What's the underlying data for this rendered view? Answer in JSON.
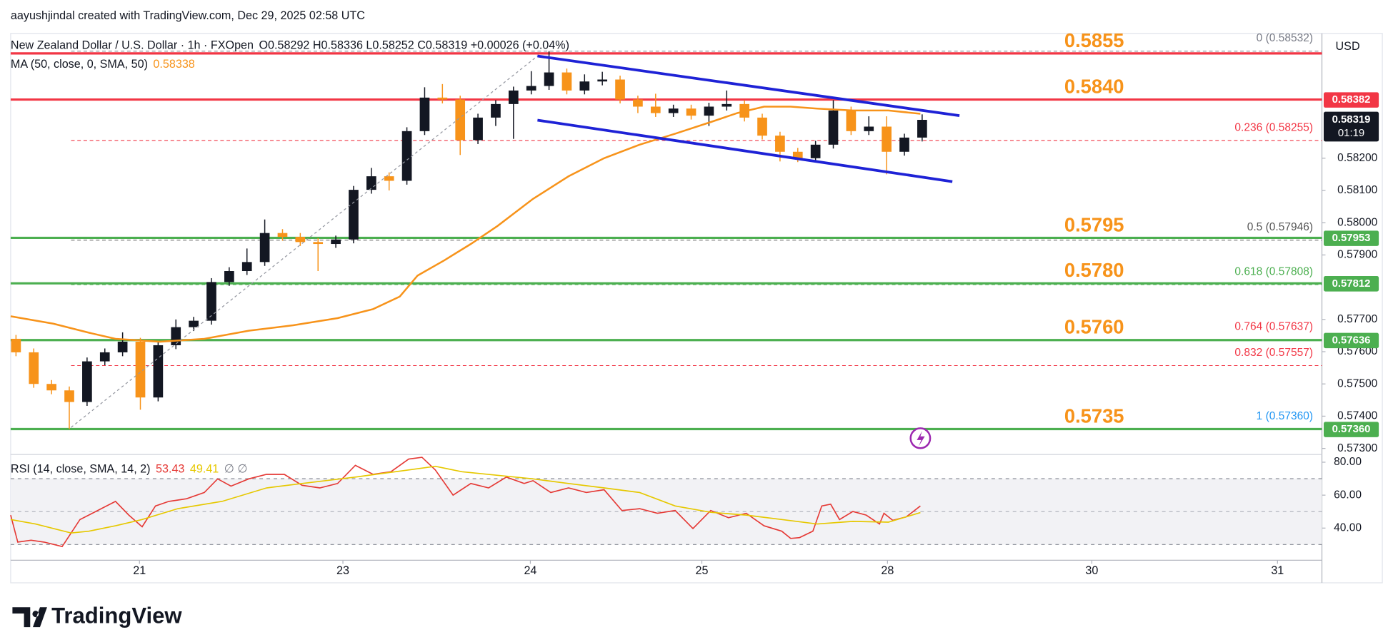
{
  "header": {
    "credit": "aayushjindal created with TradingView.com, Dec 29, 2025 02:58 UTC",
    "brand": "TradingView"
  },
  "chart_data": {
    "type": "candlestick",
    "symbol": "New Zealand Dollar / U.S. Dollar · 1h · FXOpen",
    "ohlc_text": "O0.58292 H0.58336 L0.58252 C0.58319 +0.00026 (+0.04%)",
    "currency": "USD",
    "up_color": "#131722",
    "down_color": "#f7931a",
    "x": [
      1,
      3,
      5,
      7,
      9,
      11,
      13,
      15,
      17,
      19,
      21,
      23,
      25,
      27,
      29,
      31,
      33,
      35,
      37,
      39,
      41,
      43,
      45,
      47,
      49,
      51,
      53,
      55,
      57,
      59,
      61,
      63,
      65,
      67,
      69,
      71,
      73,
      75,
      77,
      79,
      81,
      83,
      85,
      87,
      89,
      91,
      93,
      95,
      97,
      99,
      101,
      103
    ],
    "open": [
      0.5764,
      0.57598,
      0.575,
      0.5748,
      0.57444,
      0.5757,
      0.57598,
      0.57631,
      0.57458,
      0.5762,
      0.57676,
      0.57696,
      0.57816,
      0.5785,
      0.57878,
      0.57968,
      0.57956,
      0.5794,
      0.57934,
      0.57948,
      0.58102,
      0.58144,
      0.5813,
      0.58284,
      0.58388,
      0.58382,
      0.58256,
      0.58326,
      0.58368,
      0.5841,
      0.58424,
      0.58466,
      0.5841,
      0.58438,
      0.58444,
      0.58382,
      0.5836,
      0.5834,
      0.58354,
      0.58332,
      0.5836,
      0.58368,
      0.58326,
      0.5827,
      0.5822,
      0.582,
      0.58242,
      0.58348,
      0.58284,
      0.58298,
      0.5822,
      0.58264
    ],
    "high": [
      0.57652,
      0.5761,
      0.57512,
      0.57492,
      0.57582,
      0.5761,
      0.5766,
      0.57643,
      0.57632,
      0.577,
      0.57708,
      0.57828,
      0.57862,
      0.5792,
      0.5801,
      0.5798,
      0.57968,
      0.57952,
      0.5796,
      0.58114,
      0.5817,
      0.58156,
      0.58296,
      0.5842,
      0.5843,
      0.58394,
      0.58338,
      0.5838,
      0.58422,
      0.5847,
      0.58532,
      0.58478,
      0.5846,
      0.58468,
      0.58456,
      0.58394,
      0.584,
      0.58366,
      0.58366,
      0.58372,
      0.5841,
      0.5838,
      0.58338,
      0.58282,
      0.58232,
      0.58254,
      0.5838,
      0.5836,
      0.5833,
      0.5833,
      0.58276,
      0.58336
    ],
    "low": [
      0.57586,
      0.57488,
      0.57468,
      0.5736,
      0.57432,
      0.57558,
      0.57586,
      0.5742,
      0.57446,
      0.57608,
      0.57664,
      0.57684,
      0.57804,
      0.57838,
      0.57866,
      0.57944,
      0.57928,
      0.5785,
      0.57922,
      0.57936,
      0.5809,
      0.581,
      0.58118,
      0.58272,
      0.5837,
      0.5821,
      0.58244,
      0.583,
      0.5826,
      0.58398,
      0.58412,
      0.58398,
      0.58398,
      0.58426,
      0.5837,
      0.5834,
      0.58328,
      0.58328,
      0.5832,
      0.583,
      0.58348,
      0.58314,
      0.58258,
      0.5819,
      0.58188,
      0.58188,
      0.5823,
      0.58272,
      0.58272,
      0.5815,
      0.58208,
      0.58252
    ],
    "close": [
      0.57598,
      0.575,
      0.5748,
      0.57444,
      0.5757,
      0.57598,
      0.57631,
      0.57458,
      0.5762,
      0.57676,
      0.57696,
      0.57816,
      0.5785,
      0.57878,
      0.57968,
      0.57956,
      0.5794,
      0.57934,
      0.57948,
      0.58102,
      0.58144,
      0.5813,
      0.58284,
      0.58388,
      0.58382,
      0.58256,
      0.58326,
      0.58368,
      0.5841,
      0.58424,
      0.58466,
      0.5841,
      0.58438,
      0.58444,
      0.58382,
      0.5836,
      0.5834,
      0.58354,
      0.58332,
      0.5836,
      0.58368,
      0.58326,
      0.5827,
      0.5822,
      0.582,
      0.58242,
      0.58348,
      0.58284,
      0.58298,
      0.5822,
      0.58264,
      0.58319
    ],
    "last_price": 0.58319,
    "countdown": "01:19",
    "xlim": [
      0.4,
      148
    ],
    "xticks": [
      {
        "value": 14.9,
        "label": "21"
      },
      {
        "value": 37.8,
        "label": "23"
      },
      {
        "value": 58.9,
        "label": "24"
      },
      {
        "value": 78.2,
        "label": "25"
      },
      {
        "value": 99.1,
        "label": "28"
      },
      {
        "value": 122.1,
        "label": "30"
      },
      {
        "value": 143,
        "label": "31"
      }
    ],
    "ylim": [
      0.57284,
      0.58587
    ],
    "yticks": [
      {
        "value": 0.582,
        "label": "0.58200"
      },
      {
        "value": 0.581,
        "label": "0.58100"
      },
      {
        "value": 0.58,
        "label": "0.58000"
      },
      {
        "value": 0.579,
        "label": "0.57900"
      },
      {
        "value": 0.577,
        "label": "0.57700"
      },
      {
        "value": 0.576,
        "label": "0.57600"
      },
      {
        "value": 0.575,
        "label": "0.57500"
      },
      {
        "value": 0.574,
        "label": "0.57400"
      },
      {
        "value": 0.573,
        "label": "0.57300"
      }
    ],
    "ma": {
      "name": "MA (50, close, 0, SMA, 50)",
      "color": "#f7931a",
      "last": 0.58338,
      "x": [
        0.4,
        5.2,
        9.2,
        12.2,
        17.2,
        22.2,
        27.2,
        32.2,
        37.2,
        41.2,
        44.2,
        46.2,
        49.2,
        52.2,
        55.2,
        59.2,
        63.2,
        67.2,
        71.2,
        75.2,
        79.2,
        82.2,
        85.2,
        88.2,
        91.2,
        95.2,
        99.2,
        102.8
      ],
      "values": [
        0.5771,
        0.57687,
        0.57659,
        0.5764,
        0.57631,
        0.5764,
        0.57665,
        0.57682,
        0.57704,
        0.57732,
        0.57771,
        0.57836,
        0.57883,
        0.57934,
        0.5799,
        0.58074,
        0.58144,
        0.582,
        0.58242,
        0.58276,
        0.58312,
        0.5834,
        0.5836,
        0.5836,
        0.58354,
        0.58348,
        0.58348,
        0.58338
      ]
    },
    "levels": [
      {
        "price": 0.58525,
        "text": "0.5855",
        "color": "#f23645"
      },
      {
        "price": 0.58382,
        "text": "0.5840",
        "color": "#f23645",
        "box": true
      },
      {
        "price": 0.57953,
        "text": "0.5795",
        "color": "#4caf50",
        "box": true
      },
      {
        "price": 0.57812,
        "text": "0.5780",
        "color": "#4caf50",
        "box": true
      },
      {
        "price": 0.57636,
        "text": "0.5760",
        "color": "#4caf50",
        "box": true
      },
      {
        "price": {
          "value": 0.5736,
          "label": "0.57360"
        },
        "text": "0.5735",
        "color": "#4caf50",
        "box": true
      }
    ],
    "fib": [
      {
        "value": 0.58532,
        "label": "0 (0.58532)",
        "color": "#787b86"
      },
      {
        "value": 0.58255,
        "label": "0.236 (0.58255)",
        "color": "#f23645"
      },
      {
        "value": 0.57946,
        "label": "0.5 (0.57946)",
        "color": "#555555"
      },
      {
        "value": 0.57808,
        "label": "0.618 (0.57808)",
        "color": "#4caf50"
      },
      {
        "value": 0.57637,
        "label": "0.764 (0.57637)",
        "color": "#f23645"
      },
      {
        "value": 0.57557,
        "label": "0.832 (0.57557)",
        "color": "#f23645"
      },
      {
        "value": 0.5736,
        "label": "1 (0.57360)",
        "color": "#2196f3"
      }
    ],
    "rsi": {
      "name": "RSI (14, close, SMA, 14, 2)",
      "extra": "∅ ∅",
      "ylim": [
        20.5,
        83.6
      ],
      "band": [
        30,
        70
      ],
      "mid": 50,
      "yticks": [
        {
          "value": 80,
          "label": "80.00"
        },
        {
          "value": 60,
          "label": "60.00"
        },
        {
          "value": 40,
          "label": "40.00"
        }
      ],
      "series": [
        {
          "name": 53.43,
          "color": "#e53935",
          "x": [
            0.4,
            1.2,
            2.7,
            4.2,
            6.2,
            8.2,
            10.2,
            12.2,
            13.7,
            15.2,
            16.7,
            18.2,
            20.2,
            22.2,
            23.7,
            25.2,
            27.2,
            29.2,
            31.2,
            33.2,
            35.2,
            37.2,
            39.2,
            41.2,
            43.2,
            45.2,
            46.7,
            48.2,
            50.2,
            52.2,
            54.2,
            56.2,
            58.2,
            59.2,
            61.2,
            63.2,
            65.2,
            67.2,
            69.2,
            71.2,
            73.2,
            75.2,
            77.2,
            79.2,
            81.2,
            83.2,
            85.2,
            87.2,
            88.2,
            89.2,
            90.7,
            91.7,
            92.7,
            93.7,
            95.2,
            96.7,
            98.2,
            98.7,
            99.7,
            101.2,
            102.8
          ],
          "values": [
            47.9,
            31.5,
            32.6,
            31.5,
            28.8,
            45.2,
            50.7,
            56.2,
            47.9,
            40.8,
            53.4,
            56.2,
            57.8,
            61.6,
            69.9,
            65.5,
            69.9,
            72.6,
            72.6,
            66.0,
            64.4,
            67.1,
            78.1,
            72.6,
            74.2,
            81.9,
            83.0,
            75.3,
            60.0,
            67.1,
            64.4,
            71.0,
            67.1,
            68.8,
            61.6,
            64.4,
            61.6,
            63.3,
            50.7,
            51.8,
            49.0,
            50.7,
            39.7,
            50.7,
            46.3,
            49.0,
            41.4,
            38.1,
            33.7,
            34.2,
            38.1,
            53.4,
            54.5,
            45.2,
            50.1,
            47.9,
            42.5,
            49.0,
            44.7,
            46.8,
            53.43
          ]
        },
        {
          "name": 49.41,
          "color": "#e6c800",
          "x": [
            0.4,
            3.2,
            7.2,
            9.2,
            12.2,
            15.2,
            19.2,
            24.2,
            29.2,
            33.2,
            39.2,
            45.2,
            48.2,
            51.2,
            55.2,
            59.2,
            63.2,
            67.2,
            71.2,
            75.2,
            79.2,
            83.2,
            87.2,
            91.2,
            95.2,
            99.2,
            102.8
          ],
          "values": [
            45.2,
            42.5,
            37.0,
            38.1,
            41.4,
            45.2,
            51.8,
            56.2,
            64.4,
            67.1,
            71.0,
            75.3,
            77.5,
            74.2,
            72.1,
            69.9,
            67.1,
            64.4,
            61.6,
            53.4,
            49.6,
            47.9,
            45.2,
            42.5,
            44.1,
            43.6,
            49.41
          ]
        }
      ]
    }
  }
}
